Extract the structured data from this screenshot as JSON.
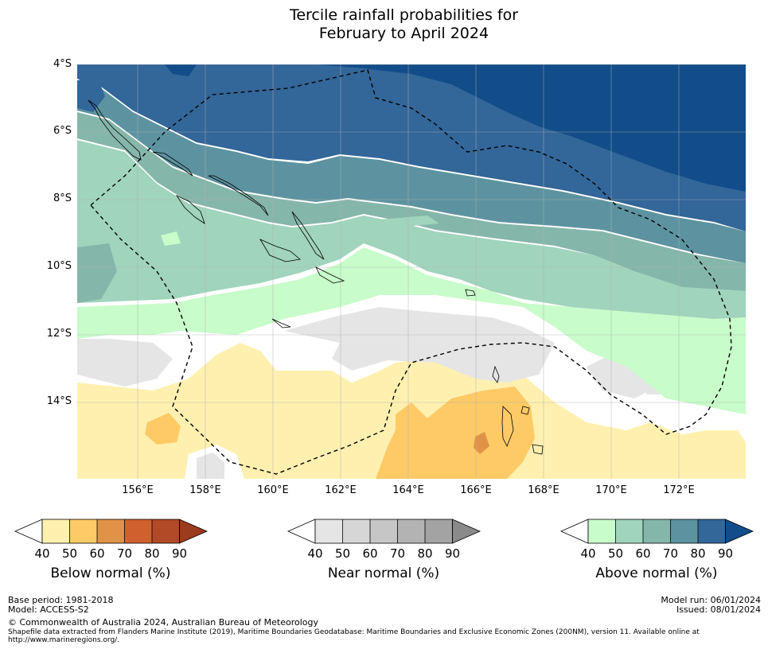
{
  "title": {
    "line1": "Tercile rainfall probabilities for",
    "line2": "February to April 2024"
  },
  "map": {
    "lat_labels": [
      "4°S",
      "6°S",
      "8°S",
      "10°S",
      "12°S",
      "14°S"
    ],
    "lon_labels": [
      "156°E",
      "158°E",
      "160°E",
      "162°E",
      "164°E",
      "166°E",
      "168°E",
      "170°E",
      "172°E"
    ],
    "lat_range": [
      -16.2,
      -4.0
    ],
    "lon_range": [
      154.2,
      174.0
    ],
    "boundary_label": "Exclusive Economic Zone (200NM)"
  },
  "colorbars": [
    {
      "name": "below",
      "label": "Below normal (%)",
      "ticks": [
        "40",
        "50",
        "60",
        "70",
        "80",
        "90"
      ],
      "colors": [
        "#fff0b0",
        "#feca66",
        "#e09347",
        "#d1602f",
        "#b24a27",
        "#9b3b1f"
      ]
    },
    {
      "name": "near",
      "label": "Near normal (%)",
      "ticks": [
        "40",
        "50",
        "60",
        "70",
        "80",
        "90"
      ],
      "colors": [
        "#e5e5e5",
        "#d6d6d6",
        "#c6c6c6",
        "#b3b3b3",
        "#a3a3a3",
        "#8a8a8a"
      ]
    },
    {
      "name": "above",
      "label": "Above normal (%)",
      "ticks": [
        "40",
        "50",
        "60",
        "70",
        "80",
        "90"
      ],
      "colors": [
        "#c8fcca",
        "#a0d4bc",
        "#85b6aa",
        "#5d93a0",
        "#336699",
        "#134d89"
      ]
    }
  ],
  "footer": {
    "base_period": "Base period: 1981-2018",
    "model": "Model: ACCESS-S2",
    "copyright": "© Commonwealth of Australia 2024, Australian Bureau of Meteorology",
    "shapefile_line1": "Shapefile data extracted from Flanders Marine Institute (2019), Maritime Boundaries Geodatabase: Maritime Boundaries and Exclusive Economic Zones (200NM), version 11. Available online at",
    "shapefile_line2": "http://www.marineregions.org/.",
    "model_run": "Model run: 06/01/2024",
    "issued": "Issued: 08/01/2024"
  }
}
